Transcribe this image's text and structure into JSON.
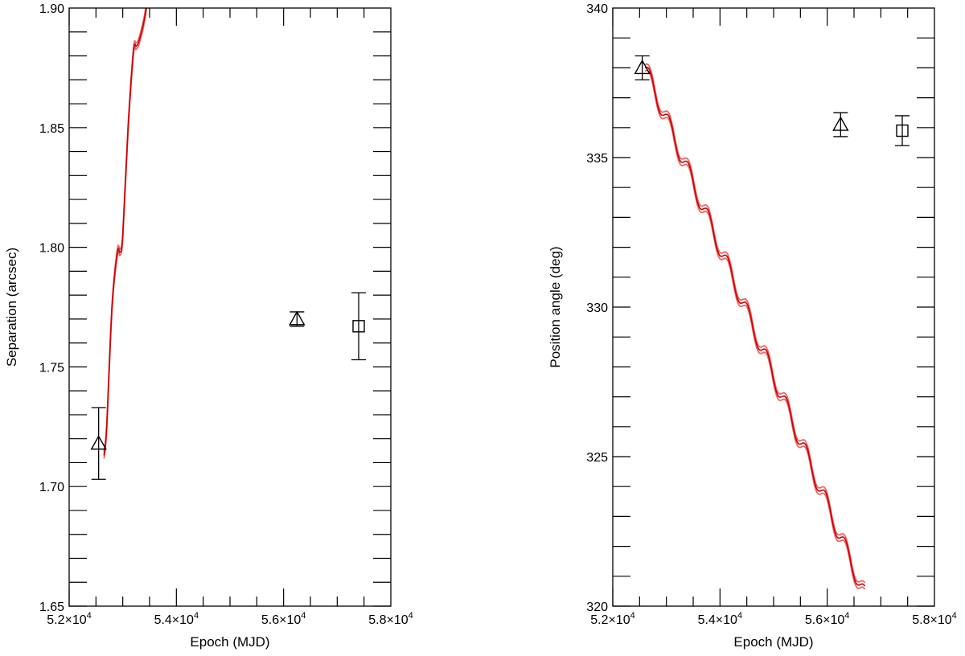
{
  "chart_data": [
    {
      "type": "scatter",
      "xlabel": "Epoch (MJD)",
      "ylabel": "Separation (arcsec)",
      "xlim": [
        52000,
        58000
      ],
      "ylim": [
        1.65,
        1.9
      ],
      "x_ticks": [
        52000,
        54000,
        56000,
        58000
      ],
      "x_tick_mantissas": [
        "5.2",
        "5.4",
        "5.6",
        "5.8"
      ],
      "x_tick_base": "×10",
      "x_tick_exponent": "4",
      "y_ticks": [
        1.65,
        1.7,
        1.75,
        1.8,
        1.85,
        1.9
      ],
      "y_tick_labels": [
        "1.65",
        "1.70",
        "1.75",
        "1.80",
        "1.85",
        "1.90"
      ],
      "grid": false,
      "points": [
        {
          "x": 52550,
          "y": 1.718,
          "err": 0.015,
          "marker": "triangle"
        },
        {
          "x": 56250,
          "y": 1.77,
          "err": 0.003,
          "marker": "triangle"
        },
        {
          "x": 57400,
          "y": 1.767,
          "err": 0.014,
          "marker": "square"
        }
      ],
      "model_curve": {
        "color": "#cc0000",
        "band_color": "#ee6666",
        "x": [
          52650,
          52700,
          52800,
          52900,
          52950,
          53000,
          53100,
          53200,
          53250,
          53300,
          53400,
          53500
        ],
        "y": [
          1.713,
          1.725,
          1.775,
          1.798,
          1.798,
          1.805,
          1.85,
          1.882,
          1.884,
          1.886,
          1.895,
          1.91
        ]
      }
    },
    {
      "type": "scatter",
      "xlabel": "Epoch (MJD)",
      "ylabel": "Position angle (deg)",
      "xlim": [
        52000,
        58000
      ],
      "ylim": [
        320,
        340
      ],
      "x_ticks": [
        52000,
        54000,
        56000,
        58000
      ],
      "x_tick_mantissas": [
        "5.2",
        "5.4",
        "5.6",
        "5.8"
      ],
      "x_tick_base": "×10",
      "x_tick_exponent": "4",
      "y_ticks": [
        320,
        325,
        330,
        335,
        340
      ],
      "y_tick_labels": [
        "320",
        "325",
        "330",
        "335",
        "340"
      ],
      "grid": false,
      "points": [
        {
          "x": 52550,
          "y": 338.0,
          "err": 0.4,
          "marker": "triangle"
        },
        {
          "x": 56250,
          "y": 336.1,
          "err": 0.4,
          "marker": "triangle"
        },
        {
          "x": 57400,
          "y": 335.9,
          "err": 0.5,
          "marker": "square"
        }
      ],
      "model_curve": {
        "color": "#cc0000",
        "band_color": "#ee6666",
        "x_start": 52600,
        "x_end": 56700,
        "y_start": 338.0,
        "slope_deg_per_day": -0.0043,
        "wiggle_amplitude_deg": 0.3,
        "wiggle_period_days": 365.25
      }
    }
  ]
}
